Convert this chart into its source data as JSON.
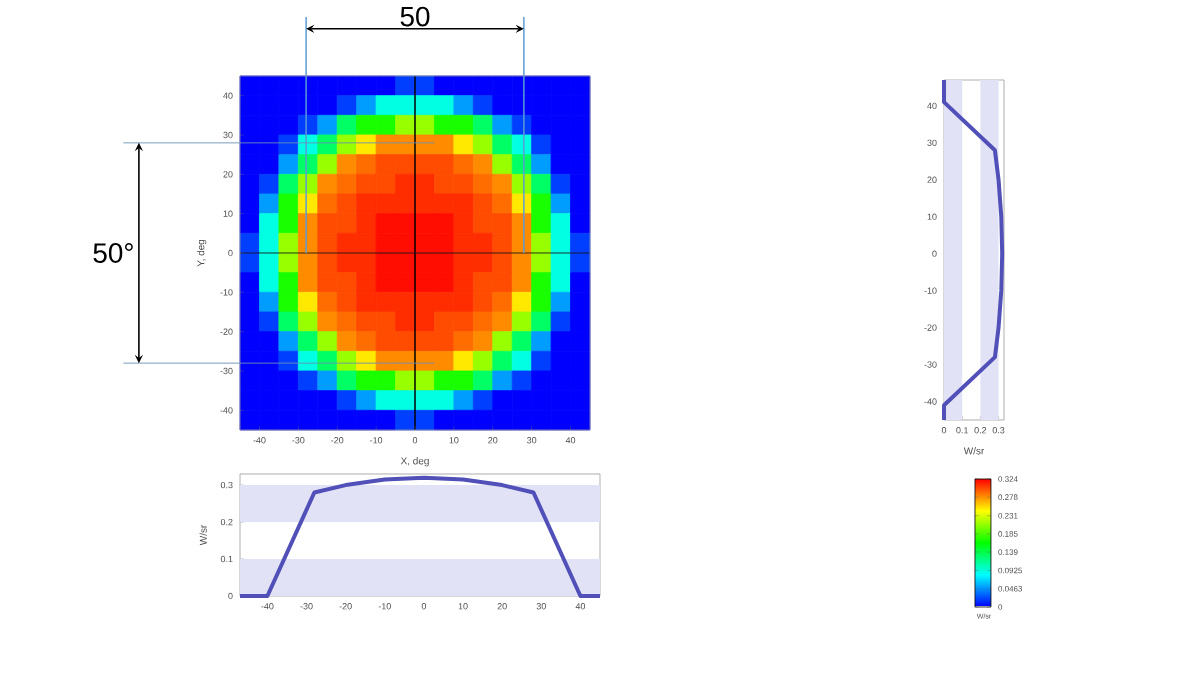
{
  "chart_data": [
    {
      "type": "heatmap",
      "xlabel": "X, deg",
      "ylabel": "Y, deg",
      "clabel": "W/sr",
      "xlim": [
        -45,
        45
      ],
      "ylim": [
        -45,
        45
      ],
      "xticks": [
        -40,
        -30,
        -20,
        -10,
        0,
        10,
        20,
        30,
        40
      ],
      "yticks": [
        -40,
        -30,
        -20,
        -10,
        0,
        10,
        20,
        30,
        40
      ],
      "clim": [
        0,
        0.324
      ],
      "cticks": [
        0,
        0.0463,
        0.0925,
        0.139,
        0.185,
        0.231,
        0.278,
        0.324
      ],
      "cells": [
        [
          0,
          0,
          0,
          0,
          0,
          0,
          0,
          0,
          0.02,
          0.02,
          0,
          0,
          0,
          0,
          0,
          0,
          0,
          0
        ],
        [
          0,
          0,
          0,
          0,
          0,
          0.02,
          0.05,
          0.09,
          0.09,
          0.09,
          0.09,
          0.05,
          0.02,
          0,
          0,
          0,
          0,
          0
        ],
        [
          0,
          0,
          0,
          0.02,
          0.05,
          0.13,
          0.17,
          0.17,
          0.21,
          0.21,
          0.17,
          0.17,
          0.13,
          0.05,
          0.02,
          0,
          0,
          0
        ],
        [
          0,
          0,
          0.02,
          0.09,
          0.13,
          0.21,
          0.25,
          0.28,
          0.28,
          0.28,
          0.28,
          0.25,
          0.21,
          0.13,
          0.09,
          0.02,
          0,
          0
        ],
        [
          0,
          0,
          0.05,
          0.13,
          0.21,
          0.28,
          0.29,
          0.3,
          0.3,
          0.3,
          0.3,
          0.29,
          0.28,
          0.21,
          0.13,
          0.05,
          0,
          0
        ],
        [
          0,
          0.02,
          0.13,
          0.21,
          0.28,
          0.29,
          0.3,
          0.3,
          0.31,
          0.31,
          0.3,
          0.3,
          0.29,
          0.28,
          0.21,
          0.13,
          0.02,
          0
        ],
        [
          0,
          0.05,
          0.17,
          0.25,
          0.29,
          0.3,
          0.31,
          0.31,
          0.31,
          0.31,
          0.31,
          0.31,
          0.3,
          0.29,
          0.25,
          0.17,
          0.05,
          0
        ],
        [
          0,
          0.09,
          0.17,
          0.28,
          0.3,
          0.3,
          0.31,
          0.32,
          0.32,
          0.32,
          0.32,
          0.31,
          0.3,
          0.3,
          0.28,
          0.17,
          0.09,
          0
        ],
        [
          0.02,
          0.09,
          0.21,
          0.28,
          0.3,
          0.31,
          0.31,
          0.32,
          0.32,
          0.32,
          0.32,
          0.31,
          0.31,
          0.3,
          0.28,
          0.21,
          0.09,
          0.02
        ],
        [
          0.02,
          0.09,
          0.21,
          0.28,
          0.3,
          0.31,
          0.31,
          0.32,
          0.32,
          0.32,
          0.32,
          0.31,
          0.31,
          0.3,
          0.28,
          0.21,
          0.09,
          0.02
        ],
        [
          0,
          0.09,
          0.17,
          0.28,
          0.3,
          0.3,
          0.31,
          0.32,
          0.32,
          0.32,
          0.32,
          0.31,
          0.3,
          0.3,
          0.28,
          0.17,
          0.09,
          0
        ],
        [
          0,
          0.05,
          0.17,
          0.25,
          0.29,
          0.3,
          0.31,
          0.31,
          0.31,
          0.31,
          0.31,
          0.31,
          0.3,
          0.29,
          0.25,
          0.17,
          0.05,
          0
        ],
        [
          0,
          0.02,
          0.13,
          0.21,
          0.28,
          0.29,
          0.3,
          0.3,
          0.31,
          0.31,
          0.3,
          0.3,
          0.29,
          0.28,
          0.21,
          0.13,
          0.02,
          0
        ],
        [
          0,
          0,
          0.05,
          0.13,
          0.21,
          0.28,
          0.29,
          0.3,
          0.3,
          0.3,
          0.3,
          0.29,
          0.28,
          0.21,
          0.13,
          0.05,
          0,
          0
        ],
        [
          0,
          0,
          0.02,
          0.09,
          0.13,
          0.21,
          0.25,
          0.28,
          0.28,
          0.28,
          0.28,
          0.25,
          0.21,
          0.13,
          0.09,
          0.02,
          0,
          0
        ],
        [
          0,
          0,
          0,
          0.02,
          0.05,
          0.13,
          0.17,
          0.17,
          0.21,
          0.21,
          0.17,
          0.17,
          0.13,
          0.05,
          0.02,
          0,
          0,
          0
        ],
        [
          0,
          0,
          0,
          0,
          0,
          0.02,
          0.05,
          0.09,
          0.09,
          0.09,
          0.09,
          0.05,
          0.02,
          0,
          0,
          0,
          0,
          0
        ],
        [
          0,
          0,
          0,
          0,
          0,
          0,
          0,
          0,
          0.02,
          0.02,
          0,
          0,
          0,
          0,
          0,
          0,
          0,
          0
        ]
      ],
      "ref_lines": [
        {
          "axis": "x",
          "value": 0,
          "color": "#000000"
        },
        {
          "axis": "y",
          "value": 0,
          "color": "#1a1a1a"
        },
        {
          "axis": "x",
          "value": -28,
          "color": "#5b9bd5"
        },
        {
          "axis": "x",
          "value": 28,
          "color": "#5b9bd5"
        },
        {
          "axis": "y",
          "value": 28,
          "color": "#6a8fb4"
        },
        {
          "axis": "y",
          "value": -28,
          "color": "#6a8fb4"
        }
      ],
      "annotations": [
        "50",
        "50°"
      ]
    },
    {
      "type": "line",
      "xlabel": "W/sr",
      "xlim": [
        0,
        0.33
      ],
      "ylim": [
        -45,
        47
      ],
      "xticks": [
        0,
        0.1,
        0.2,
        0.3
      ],
      "yticks": [
        -40,
        -30,
        -20,
        -10,
        0,
        10,
        20,
        30,
        40
      ],
      "x": [
        0,
        0,
        0.28,
        0.3,
        0.315,
        0.32,
        0.315,
        0.3,
        0.28,
        0,
        0
      ],
      "values": [
        -45,
        -41,
        -28,
        -20,
        -10,
        0,
        10,
        20,
        28,
        41,
        47
      ],
      "color": "#5050b8",
      "bands": [
        {
          "axis": "x",
          "from": 0,
          "to": 0.1,
          "color": "#e2e2f6"
        },
        {
          "axis": "x",
          "from": 0.2,
          "to": 0.3,
          "color": "#e2e2f6"
        }
      ]
    },
    {
      "type": "line",
      "ylabel": "W/sr",
      "xlim": [
        -47,
        45
      ],
      "ylim": [
        0,
        0.33
      ],
      "xticks": [
        -40,
        -30,
        -20,
        -10,
        0,
        10,
        20,
        30,
        40
      ],
      "yticks": [
        0,
        0.1,
        0.2,
        0.3
      ],
      "x": [
        -47,
        -40,
        -28,
        -20,
        -10,
        0,
        10,
        20,
        28,
        40,
        45
      ],
      "values": [
        0,
        0,
        0.28,
        0.3,
        0.315,
        0.32,
        0.315,
        0.3,
        0.28,
        0,
        0
      ],
      "color": "#5050b8",
      "bands": [
        {
          "axis": "y",
          "from": 0,
          "to": 0.1,
          "color": "#e2e2f6"
        },
        {
          "axis": "y",
          "from": 0.2,
          "to": 0.3,
          "color": "#e2e2f6"
        }
      ]
    }
  ]
}
